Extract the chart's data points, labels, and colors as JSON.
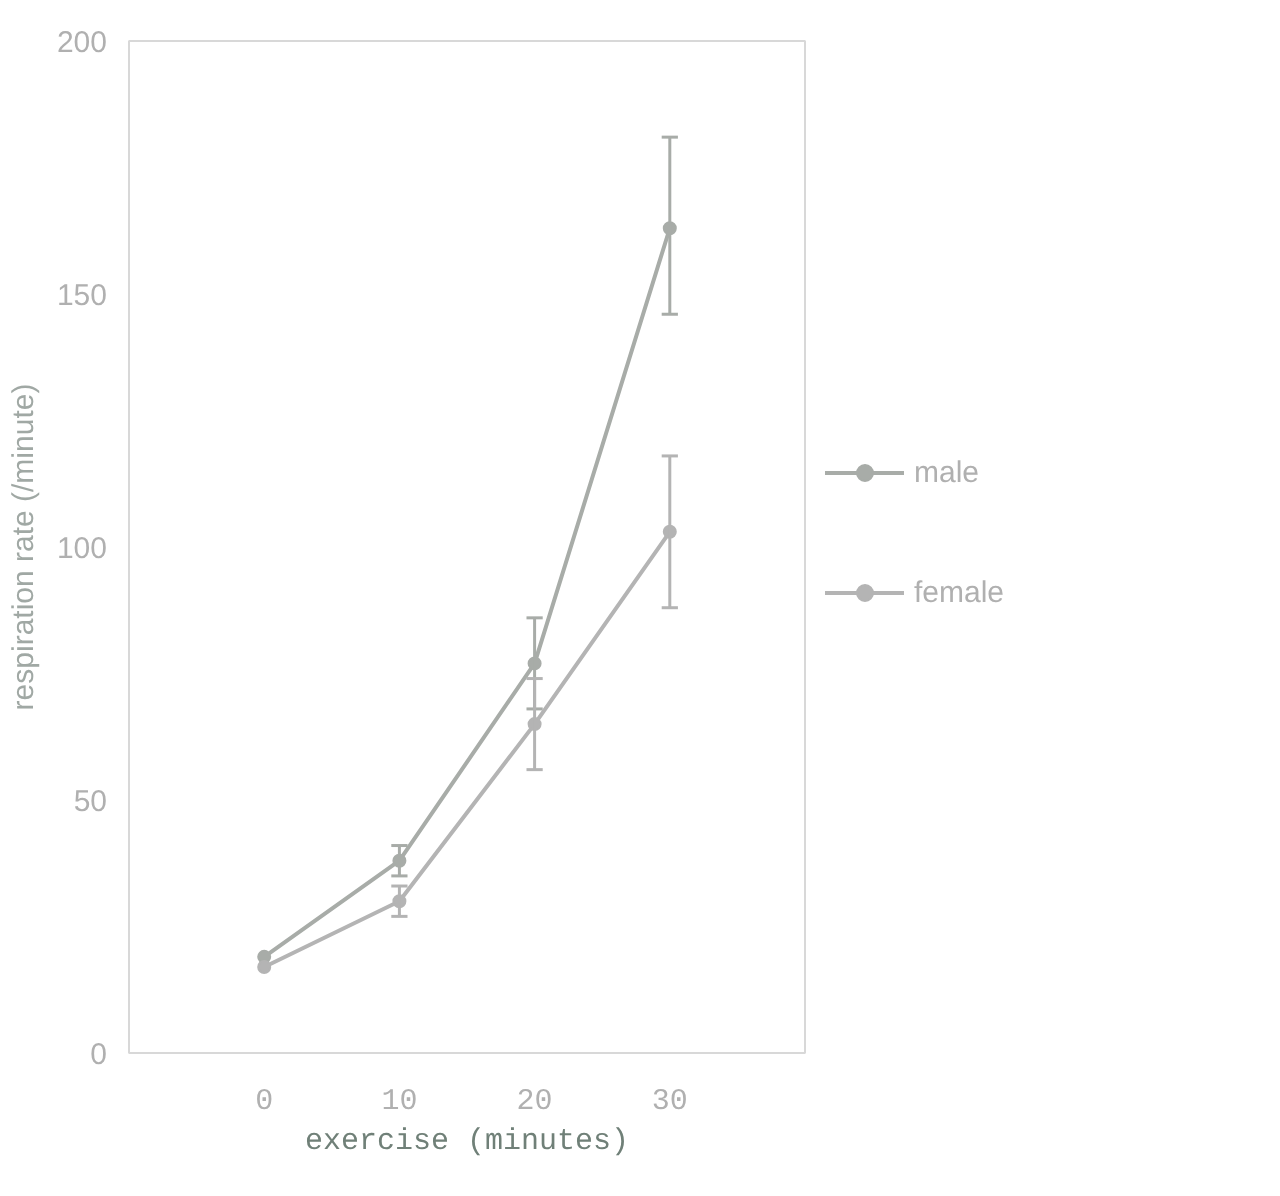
{
  "chart_data": {
    "type": "line",
    "xlabel": "exercise (minutes)",
    "ylabel": "respiration rate (/minute)",
    "x": [
      0,
      10,
      20,
      30
    ],
    "xlim": [
      -10,
      40
    ],
    "xticks": [
      0,
      10,
      20,
      30
    ],
    "ylim": [
      0,
      200
    ],
    "yticks": [
      0,
      50,
      100,
      150,
      200
    ],
    "series": [
      {
        "name": "male",
        "color": "#a8aca8",
        "values": [
          19,
          38,
          77,
          163
        ],
        "errors": [
          null,
          3,
          [
            68,
            86
          ],
          [
            146,
            181
          ]
        ]
      },
      {
        "name": "female",
        "color": "#b4b4b4",
        "values": [
          17,
          30,
          65,
          103
        ],
        "errors": [
          null,
          3,
          [
            56,
            74
          ],
          [
            88,
            118
          ]
        ]
      }
    ],
    "marker": "circle",
    "line_style": "solid",
    "grid": false,
    "legend": "right"
  }
}
